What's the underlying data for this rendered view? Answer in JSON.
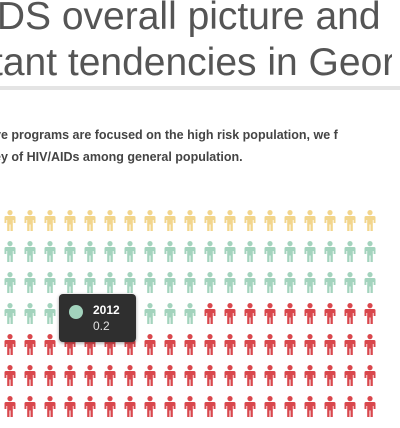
{
  "header": {
    "title_line1": "IDS overall picture and",
    "title_line2": "tant tendencies in Georg"
  },
  "intro": {
    "line1": "ve programs are focused on the high risk population, we f",
    "line2": "ey of HIV/AIDs among general population."
  },
  "tooltip": {
    "year": "2012",
    "value": "0.2",
    "dot_color": "#a3d3bd"
  },
  "chart_data": {
    "type": "pictograph",
    "unit_icon": "person-icon",
    "rows": [
      {
        "groups": [
          {
            "color": "#f2d58c",
            "count": 19
          }
        ]
      },
      {
        "groups": [
          {
            "color": "#a3d3bd",
            "count": 19
          }
        ]
      },
      {
        "groups": [
          {
            "color": "#a3d3bd",
            "count": 19
          }
        ]
      },
      {
        "groups": [
          {
            "color": "#a3d3bd",
            "count": 10
          },
          {
            "color": "#d9474c",
            "count": 9
          }
        ]
      },
      {
        "groups": [
          {
            "color": "#d9474c",
            "count": 19
          }
        ]
      },
      {
        "groups": [
          {
            "color": "#d9474c",
            "count": 19
          }
        ]
      },
      {
        "groups": [
          {
            "color": "#d9474c",
            "count": 19
          }
        ]
      }
    ]
  }
}
